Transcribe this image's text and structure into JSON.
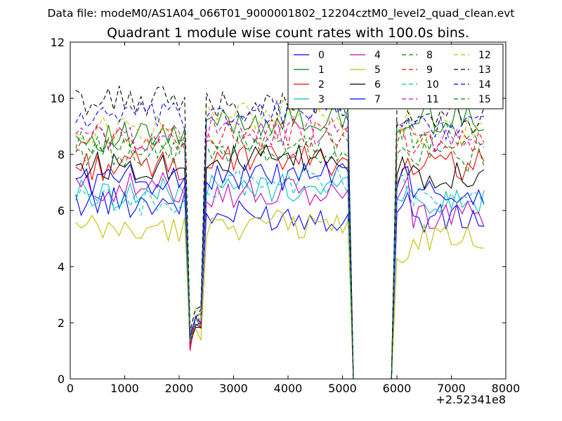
{
  "chart_data": {
    "type": "line",
    "suptitle": "Data file: modeM0/AS1A04_066T01_9000001802_12204cztM0_level2_quad_clean.evt",
    "title": "Quadrant 1 module wise count rates with 100.0s bins.",
    "xlabel": "",
    "ylabel": "",
    "x_offset_label": "+2.52341e8",
    "xlim": [
      0,
      8000
    ],
    "ylim": [
      0,
      12
    ],
    "x_ticks": [
      0,
      1000,
      2000,
      3000,
      4000,
      5000,
      6000,
      7000,
      8000
    ],
    "y_ticks": [
      0,
      2,
      4,
      6,
      8,
      10,
      12
    ],
    "x_tick_labels": [
      "0",
      "1000",
      "2000",
      "3000",
      "4000",
      "5000",
      "6000",
      "7000",
      "8000"
    ],
    "y_tick_labels": [
      "0",
      "2",
      "4",
      "6",
      "8",
      "10",
      "12"
    ],
    "grid": false,
    "legend_position": "upper-right",
    "segments": [
      {
        "x_start": 100,
        "x_end": 2100,
        "step": 100
      },
      {
        "x_start": 2200,
        "x_end": 2400,
        "step": 100
      },
      {
        "x_start": 2500,
        "x_end": 5100,
        "step": 100
      },
      {
        "x_start": 5200,
        "x_end": 5900,
        "step": 100
      },
      {
        "x_start": 6000,
        "x_end": 6200,
        "step": 100
      },
      {
        "x_start": 6300,
        "x_end": 7600,
        "step": 100
      }
    ],
    "series": [
      {
        "name": "0",
        "color": "#0000ff",
        "dash": "solid",
        "segments": [
          6.3,
          2.0,
          5.8,
          0.0,
          6.3,
          5.7
        ],
        "dip_low": 1.2
      },
      {
        "name": "1",
        "color": "#008000",
        "dash": "solid",
        "segments": [
          8.6,
          2.1,
          9.2,
          0.0,
          8.8,
          9.3
        ],
        "dip_low": 1.4
      },
      {
        "name": "2",
        "color": "#ff0000",
        "dash": "solid",
        "segments": [
          7.6,
          2.0,
          7.8,
          0.0,
          7.5,
          7.6
        ],
        "dip_low": 1.0
      },
      {
        "name": "3",
        "color": "#00bfbf",
        "dash": "solid",
        "segments": [
          6.6,
          2.0,
          6.8,
          0.0,
          6.8,
          6.3
        ],
        "dip_low": 1.2
      },
      {
        "name": "4",
        "color": "#bf00bf",
        "dash": "solid",
        "segments": [
          6.8,
          2.0,
          6.6,
          0.0,
          6.7,
          5.8
        ],
        "dip_low": 1.1
      },
      {
        "name": "5",
        "color": "#bfbf00",
        "dash": "solid",
        "segments": [
          5.3,
          1.6,
          5.5,
          0.0,
          4.2,
          5.0
        ],
        "dip_low": 1.3
      },
      {
        "name": "6",
        "color": "#000000",
        "dash": "solid",
        "segments": [
          7.6,
          2.0,
          7.8,
          0.0,
          7.6,
          7.3
        ],
        "dip_low": 1.3
      },
      {
        "name": "7",
        "color": "#0000ff",
        "dash": "solid",
        "segments": [
          7.1,
          2.1,
          7.2,
          0.0,
          7.2,
          6.6
        ],
        "dip_low": 1.5
      },
      {
        "name": "8",
        "color": "#008000",
        "dash": "dash",
        "segments": [
          8.1,
          2.2,
          8.2,
          0.0,
          8.0,
          7.9
        ],
        "dip_low": 1.3
      },
      {
        "name": "9",
        "color": "#ff0000",
        "dash": "dash",
        "segments": [
          8.6,
          2.1,
          8.7,
          0.0,
          8.6,
          8.4
        ],
        "dip_low": 1.2
      },
      {
        "name": "10",
        "color": "#00bfbf",
        "dash": "dash",
        "segments": [
          6.3,
          1.9,
          7.0,
          0.0,
          7.0,
          6.3
        ],
        "dip_low": 1.3
      },
      {
        "name": "11",
        "color": "#bf00bf",
        "dash": "dash",
        "segments": [
          8.6,
          2.2,
          8.8,
          0.0,
          8.9,
          8.5
        ],
        "dip_low": 1.4
      },
      {
        "name": "12",
        "color": "#bfbf00",
        "dash": "dash",
        "segments": [
          8.9,
          2.3,
          9.4,
          0.0,
          9.2,
          8.8
        ],
        "dip_low": 1.6
      },
      {
        "name": "13",
        "color": "#000000",
        "dash": "dash",
        "segments": [
          9.9,
          2.4,
          9.8,
          0.0,
          9.6,
          9.2
        ],
        "dip_low": 1.7
      },
      {
        "name": "14",
        "color": "#0000ff",
        "dash": "dash",
        "segments": [
          9.3,
          2.3,
          9.5,
          0.0,
          9.4,
          9.0
        ],
        "dip_low": 1.6
      },
      {
        "name": "15",
        "color": "#008000",
        "dash": "dash",
        "segments": [
          8.3,
          2.1,
          8.3,
          0.0,
          8.8,
          8.6
        ],
        "dip_low": 1.4
      }
    ]
  }
}
